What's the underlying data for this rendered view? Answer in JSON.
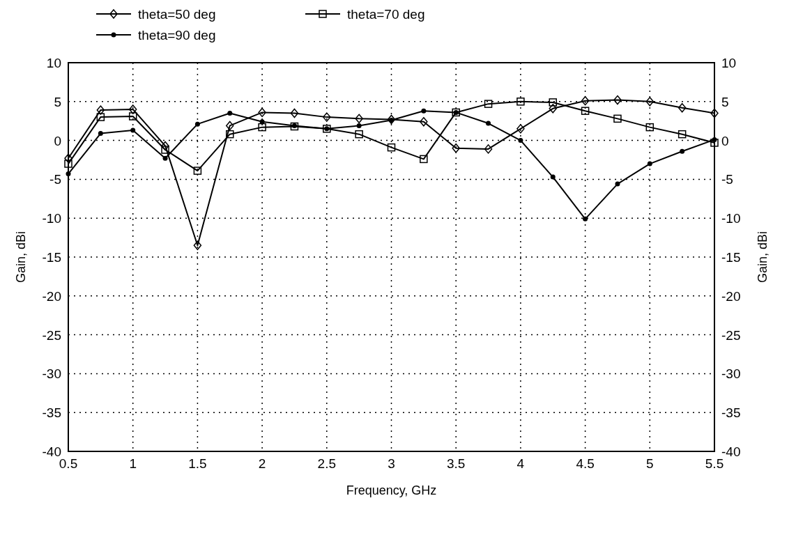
{
  "chart_data": {
    "type": "line",
    "xlabel": "Frequency, GHz",
    "ylabel": "Gain, dBi",
    "y2label": "Gain, dBi",
    "x": [
      0.5,
      0.75,
      1,
      1.25,
      1.5,
      1.75,
      2,
      2.25,
      2.5,
      2.75,
      3,
      3.25,
      3.5,
      3.75,
      4,
      4.25,
      4.5,
      4.75,
      5,
      5.25,
      5.5
    ],
    "series": [
      {
        "name": "theta=50 deg",
        "color": "#000000",
        "marker": "diamond",
        "values": [
          -2.3,
          3.9,
          4.0,
          -0.7,
          -13.5,
          1.9,
          3.6,
          3.5,
          3.0,
          2.8,
          2.7,
          2.4,
          -1.0,
          -1.1,
          1.5,
          4.1,
          5.1,
          5.2,
          5.0,
          4.2,
          3.5
        ]
      },
      {
        "name": "theta=70 deg",
        "color": "#000000",
        "marker": "square",
        "values": [
          -3.0,
          3.0,
          3.1,
          -1.2,
          -3.9,
          0.8,
          1.7,
          1.8,
          1.5,
          0.8,
          -0.9,
          -2.4,
          3.6,
          4.7,
          5.0,
          4.9,
          3.8,
          2.8,
          1.7,
          0.8,
          -0.3
        ]
      },
      {
        "name": "theta=90 deg",
        "color": "#000000",
        "marker": "circle",
        "values": [
          -4.3,
          0.9,
          1.3,
          -2.3,
          2.1,
          3.5,
          2.4,
          1.9,
          1.5,
          1.9,
          2.6,
          3.8,
          3.6,
          2.2,
          0,
          -4.7,
          -10.1,
          -5.6,
          -3.0,
          -1.4,
          0.1
        ]
      }
    ],
    "xlim": [
      0.5,
      5.5
    ],
    "xticks": [
      0.5,
      1,
      1.5,
      2,
      2.5,
      3,
      3.5,
      4,
      4.5,
      5,
      5.5
    ],
    "ylim": [
      -40,
      10
    ],
    "yticks": [
      -40,
      -35,
      -30,
      -25,
      -20,
      -15,
      -10,
      -5,
      0,
      5,
      10
    ],
    "y2lim": [
      -40,
      10
    ],
    "y2ticks": [
      -40,
      -35,
      -30,
      -25,
      -20,
      -15,
      -10,
      -5,
      0,
      5,
      10
    ],
    "grid": true,
    "legend": "top left",
    "line_style": "solid"
  }
}
